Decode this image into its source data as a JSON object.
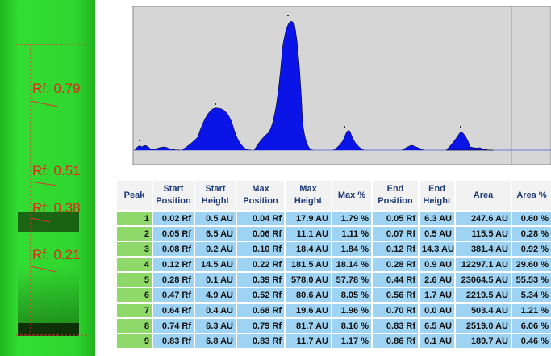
{
  "plate": {
    "rf_labels": [
      "Rf: 0.79",
      "Rf: 0.51",
      "Rf: 0.38",
      "Rf: 0.21"
    ]
  },
  "table": {
    "headers": [
      "Peak",
      "Start Position",
      "Start Height",
      "Max Position",
      "Max Height",
      "Max %",
      "End Position",
      "End Height",
      "Area",
      "Area %"
    ],
    "rows": [
      [
        "1",
        "0.02 Rf",
        "0.5 AU",
        "0.04 Rf",
        "17.9 AU",
        "1.79 %",
        "0.05 Rf",
        "6.3 AU",
        "247.6 AU",
        "0.60 %"
      ],
      [
        "2",
        "0.05 Rf",
        "6.5 AU",
        "0.06 Rf",
        "11.1 AU",
        "1.11 %",
        "0.07 Rf",
        "0.5 AU",
        "115.5 AU",
        "0.28 %"
      ],
      [
        "3",
        "0.08 Rf",
        "0.2 AU",
        "0.10 Rf",
        "18.4 AU",
        "1.84 %",
        "0.12 Rf",
        "14.3 AU",
        "381.4 AU",
        "0.92 %"
      ],
      [
        "4",
        "0.12 Rf",
        "14.5 AU",
        "0.22 Rf",
        "181.5 AU",
        "18.14 %",
        "0.28 Rf",
        "0.9 AU",
        "12297.1 AU",
        "29.60 %"
      ],
      [
        "5",
        "0.28 Rf",
        "0.1 AU",
        "0.39 Rf",
        "578.0 AU",
        "57.78 %",
        "0.44 Rf",
        "2.6 AU",
        "23064.5 AU",
        "55.53 %"
      ],
      [
        "6",
        "0.47 Rf",
        "4.9 AU",
        "0.52 Rf",
        "80.6 AU",
        "8.05 %",
        "0.56 Rf",
        "1.7 AU",
        "2219.5 AU",
        "5.34 %"
      ],
      [
        "7",
        "0.64 Rf",
        "0.4 AU",
        "0.68 Rf",
        "19.6 AU",
        "1.96 %",
        "0.70 Rf",
        "0.0 AU",
        "503.4 AU",
        "1.21 %"
      ],
      [
        "8",
        "0.74 Rf",
        "6.3 AU",
        "0.79 Rf",
        "81.7 AU",
        "8.16 %",
        "0.83 Rf",
        "6.5 AU",
        "2519.0 AU",
        "6.06 %"
      ],
      [
        "9",
        "0.83 Rf",
        "6.8 AU",
        "0.83 Rf",
        "11.7 AU",
        "1.17 %",
        "0.86 Rf",
        "0.1 AU",
        "189.7 AU",
        "0.46 %"
      ]
    ]
  }
}
